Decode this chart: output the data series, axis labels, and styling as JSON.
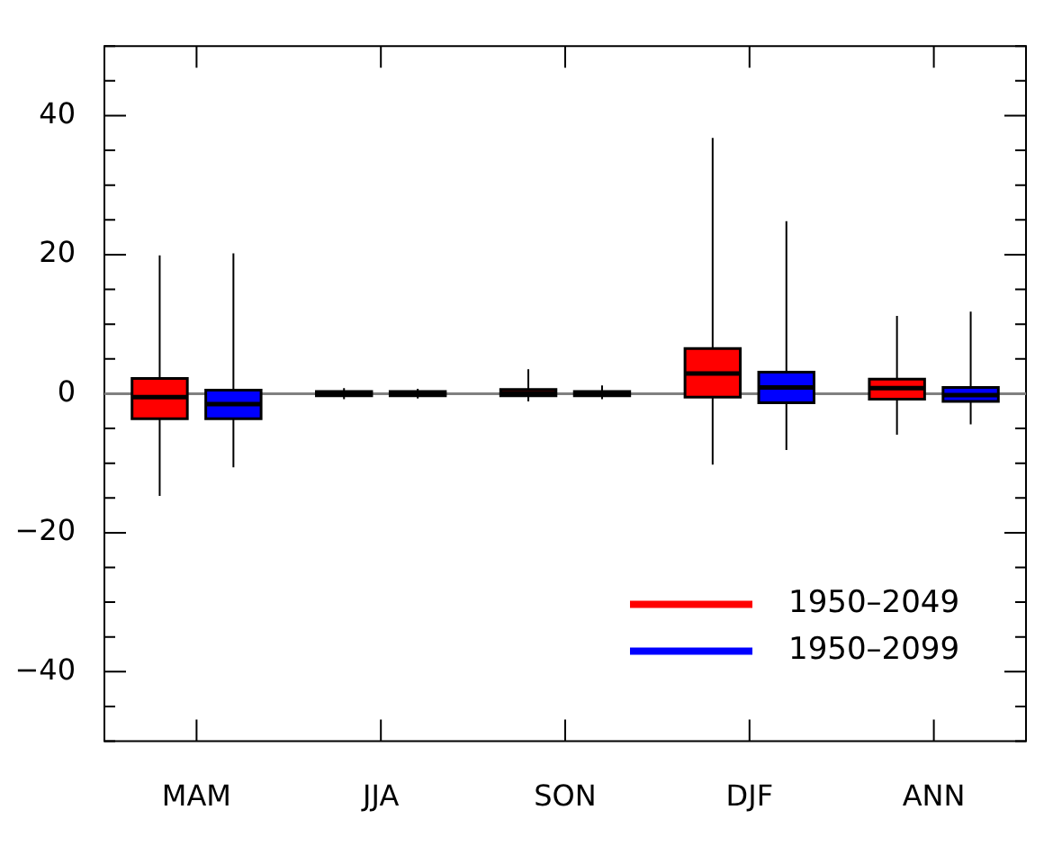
{
  "chart_data": {
    "type": "box",
    "categories": [
      "MAM",
      "JJA",
      "SON",
      "DJF",
      "ANN"
    ],
    "series": [
      {
        "name": "1950–2049",
        "color": "#ff0000",
        "boxes": [
          {
            "low": -14.7,
            "q1": -3.6,
            "median": -0.5,
            "q3": 2.2,
            "high": 19.9
          },
          {
            "low": -0.8,
            "q1": -0.3,
            "median": 0,
            "q3": 0.3,
            "high": 0.8
          },
          {
            "low": -1.1,
            "q1": -0.3,
            "median": 0.1,
            "q3": 0.6,
            "high": 3.5
          },
          {
            "low": -10.2,
            "q1": -0.5,
            "median": 2.9,
            "q3": 6.5,
            "high": 36.8
          },
          {
            "low": -5.9,
            "q1": -0.8,
            "median": 0.8,
            "q3": 2.1,
            "high": 11.2
          }
        ]
      },
      {
        "name": "1950–2099",
        "color": "#0000ff",
        "boxes": [
          {
            "low": -10.6,
            "q1": -3.6,
            "median": -1.5,
            "q3": 0.5,
            "high": 20.2
          },
          {
            "low": -0.7,
            "q1": -0.3,
            "median": 0,
            "q3": 0.3,
            "high": 0.7
          },
          {
            "low": -0.8,
            "q1": -0.3,
            "median": 0,
            "q3": 0.3,
            "high": 1.2
          },
          {
            "low": -8.1,
            "q1": -1.3,
            "median": 0.9,
            "q3": 3.1,
            "high": 24.8
          },
          {
            "low": -4.4,
            "q1": -1.1,
            "median": -0.2,
            "q3": 0.9,
            "high": 11.8
          }
        ]
      }
    ],
    "ylim": [
      -50,
      50
    ],
    "yticks": [
      {
        "value": -50,
        "label": null
      },
      {
        "value": -45,
        "label": null
      },
      -40,
      {
        "value": -35,
        "label": null
      },
      {
        "value": -30,
        "label": null
      },
      {
        "value": -25,
        "label": null
      },
      -20,
      {
        "value": -15,
        "label": null
      },
      {
        "value": -10,
        "label": null
      },
      {
        "value": -5,
        "label": null
      },
      0,
      {
        "value": 5,
        "label": null
      },
      {
        "value": 10,
        "label": null
      },
      {
        "value": 15,
        "label": null
      },
      20,
      {
        "value": 25,
        "label": null
      },
      {
        "value": 30,
        "label": null
      },
      {
        "value": 35,
        "label": null
      },
      40,
      {
        "value": 45,
        "label": null
      },
      {
        "value": 50,
        "label": null
      }
    ],
    "ref_lines": [
      {
        "axis": "y",
        "value": 0,
        "color": "#808080"
      }
    ],
    "legend": "bottom right"
  }
}
